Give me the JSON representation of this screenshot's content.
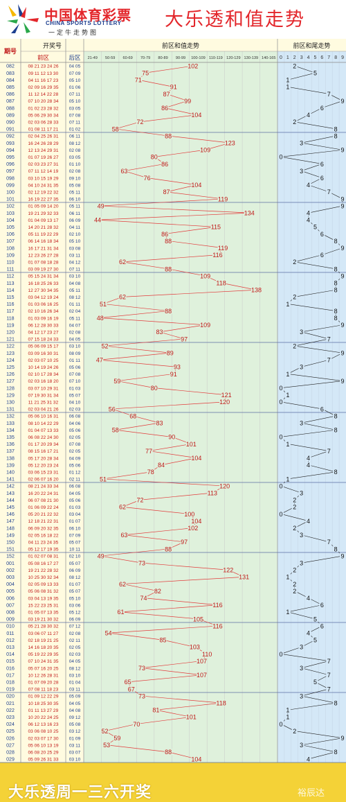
{
  "brand": {
    "name_cn": "中国体育彩票",
    "name_en": "CHINA SPORTS LOTTERY",
    "slogan": "一定牛走势图",
    "title": "大乐透和值走势"
  },
  "headers": {
    "period": "期号",
    "draw": "开奖号",
    "front": "前区",
    "back": "后区",
    "sum_trend": "前区和值走势",
    "tail_trend": "前区和尾走势"
  },
  "footer": {
    "text": "大乐透周一三六开奖",
    "watermark": "裕辰达"
  },
  "chart_data": {
    "type": "line",
    "sum_bins": [
      "21-49",
      "50-59",
      "60-69",
      "70-79",
      "80-89",
      "90-99",
      "100-109",
      "110-119",
      "120-129",
      "130-139",
      "140-165"
    ],
    "tail_digits": [
      "0",
      "1",
      "2",
      "3",
      "4",
      "5",
      "6",
      "7",
      "8",
      "9"
    ],
    "rows": [
      {
        "period": "082",
        "front": "08 21 23 24 26",
        "back": "04 05",
        "sum": 102,
        "tail": 2
      },
      {
        "period": "083",
        "front": "09 11 12 13 30",
        "back": "07 09",
        "sum": 75,
        "tail": 5
      },
      {
        "period": "084",
        "front": "04 11 16 17 23",
        "back": "05 10",
        "sum": 71,
        "tail": 1
      },
      {
        "period": "085",
        "front": "02 09 16 29 35",
        "back": "01 06",
        "sum": 91,
        "tail": 1
      },
      {
        "period": "086",
        "front": "11 12 14 22 28",
        "back": "07 11",
        "sum": 87,
        "tail": 7
      },
      {
        "period": "087",
        "front": "07 10 20 28 34",
        "back": "05 10",
        "sum": 99,
        "tail": 9
      },
      {
        "period": "088",
        "front": "01 02 23 28 32",
        "back": "03 05",
        "sum": 86,
        "tail": 6
      },
      {
        "period": "089",
        "front": "05 06 29 30 34",
        "back": "07 08",
        "sum": 104,
        "tail": 4
      },
      {
        "period": "090",
        "front": "02 03 06 28 33",
        "back": "07 11",
        "sum": 72,
        "tail": 2
      },
      {
        "period": "091",
        "front": "01 08 11 17 21",
        "back": "01 02",
        "sum": 58,
        "tail": 8
      },
      {
        "period": "092",
        "front": "02 04 25 26 31",
        "back": "06 11",
        "sum": 88,
        "tail": 8
      },
      {
        "period": "093",
        "front": "16 24 26 28 29",
        "back": "08 12",
        "sum": 123,
        "tail": 3
      },
      {
        "period": "094",
        "front": "12 13 24 29 31",
        "back": "02 08",
        "sum": 109,
        "tail": 9
      },
      {
        "period": "095",
        "front": "01 07 19 26 27",
        "back": "03 05",
        "sum": 80,
        "tail": 0
      },
      {
        "period": "096",
        "front": "02 03 23 27 31",
        "back": "01 10",
        "sum": 86,
        "tail": 6
      },
      {
        "period": "097",
        "front": "07 11 12 14 19",
        "back": "02 08",
        "sum": 63,
        "tail": 3
      },
      {
        "period": "098",
        "front": "03 10 15 19 29",
        "back": "09 10",
        "sum": 76,
        "tail": 6
      },
      {
        "period": "099",
        "front": "04 10 24 31 35",
        "back": "05 08",
        "sum": 104,
        "tail": 4
      },
      {
        "period": "100",
        "front": "02 12 19 22 32",
        "back": "05 11",
        "sum": 87,
        "tail": 7
      },
      {
        "period": "101",
        "front": "16 19 22 27 35",
        "back": "06 10",
        "sum": 119,
        "tail": 9
      },
      {
        "period": "102",
        "front": "01 05 09 14 20",
        "back": "05 11",
        "sum": 49,
        "tail": 9
      },
      {
        "period": "103",
        "front": "19 21 29 32 33",
        "back": "06 11",
        "sum": 134,
        "tail": 4
      },
      {
        "period": "104",
        "front": "01 04 09 13 17",
        "back": "06 09",
        "sum": 44,
        "tail": 4
      },
      {
        "period": "105",
        "front": "14 20 21 28 32",
        "back": "04 11",
        "sum": 115,
        "tail": 5
      },
      {
        "period": "106",
        "front": "05 11 19 22 29",
        "back": "02 10",
        "sum": 86,
        "tail": 6
      },
      {
        "period": "107",
        "front": "06 14 16 18 34",
        "back": "05 10",
        "sum": 88,
        "tail": 8
      },
      {
        "period": "108",
        "front": "16 17 21 31 34",
        "back": "03 08",
        "sum": 119,
        "tail": 9
      },
      {
        "period": "109",
        "front": "12 23 26 27 28",
        "back": "03 11",
        "sum": 116,
        "tail": 6
      },
      {
        "period": "110",
        "front": "01 07 08 18 28",
        "back": "04 12",
        "sum": 62,
        "tail": 2
      },
      {
        "period": "111",
        "front": "03 09 19 27 30",
        "back": "07 11",
        "sum": 88,
        "tail": 8
      },
      {
        "period": "112",
        "front": "05 15 24 31 34",
        "back": "03 10",
        "sum": 109,
        "tail": 9
      },
      {
        "period": "113",
        "front": "16 18 25 26 33",
        "back": "04 08",
        "sum": 118,
        "tail": 8
      },
      {
        "period": "114",
        "front": "12 27 30 34 35",
        "back": "05 11",
        "sum": 138,
        "tail": 8
      },
      {
        "period": "115",
        "front": "03 04 12 19 24",
        "back": "08 12",
        "sum": 62,
        "tail": 2
      },
      {
        "period": "116",
        "front": "01 03 06 16 25",
        "back": "01 11",
        "sum": 51,
        "tail": 1
      },
      {
        "period": "117",
        "front": "02 10 16 26 34",
        "back": "02 04",
        "sum": 88,
        "tail": 8
      },
      {
        "period": "118",
        "front": "01 03 09 16 19",
        "back": "05 11",
        "sum": 48,
        "tail": 8
      },
      {
        "period": "119",
        "front": "06 12 28 30 33",
        "back": "04 07",
        "sum": 109,
        "tail": 9
      },
      {
        "period": "120",
        "front": "04 12 17 23 27",
        "back": "02 08",
        "sum": 83,
        "tail": 3
      },
      {
        "period": "121",
        "front": "07 15 18 24 33",
        "back": "04 05",
        "sum": 97,
        "tail": 7
      },
      {
        "period": "122",
        "front": "05 06 09 15 17",
        "back": "03 10",
        "sum": 52,
        "tail": 2
      },
      {
        "period": "123",
        "front": "03 09 16 30 31",
        "back": "08 09",
        "sum": 89,
        "tail": 9
      },
      {
        "period": "124",
        "front": "02 03 07 10 25",
        "back": "01 11",
        "sum": 47,
        "tail": 7
      },
      {
        "period": "125",
        "front": "10 14 19 24 26",
        "back": "05 06",
        "sum": 93,
        "tail": 3
      },
      {
        "period": "126",
        "front": "02 10 17 28 34",
        "back": "07 08",
        "sum": 91,
        "tail": 1
      },
      {
        "period": "127",
        "front": "02 03 16 18 20",
        "back": "07 10",
        "sum": 59,
        "tail": 9
      },
      {
        "period": "128",
        "front": "03 07 10 29 31",
        "back": "01 03",
        "sum": 80,
        "tail": 0
      },
      {
        "period": "129",
        "front": "07 19 30 31 34",
        "back": "05 07",
        "sum": 121,
        "tail": 1
      },
      {
        "period": "130",
        "front": "11 21 25 31 32",
        "back": "04 10",
        "sum": 120,
        "tail": 0
      },
      {
        "period": "131",
        "front": "02 03 04 21 26",
        "back": "02 03",
        "sum": 56,
        "tail": 6
      },
      {
        "period": "132",
        "front": "05 06 10 16 31",
        "back": "06 08",
        "sum": 68,
        "tail": 8
      },
      {
        "period": "133",
        "front": "08 10 14 22 29",
        "back": "04 06",
        "sum": 83,
        "tail": 3
      },
      {
        "period": "134",
        "front": "01 04 07 13 33",
        "back": "05 06",
        "sum": 58,
        "tail": 8
      },
      {
        "period": "135",
        "front": "06 08 22 24 30",
        "back": "02 05",
        "sum": 90,
        "tail": 0
      },
      {
        "period": "136",
        "front": "01 17 20 29 34",
        "back": "07 08",
        "sum": 101,
        "tail": 1
      },
      {
        "period": "137",
        "front": "08 15 16 17 21",
        "back": "02 05",
        "sum": 77,
        "tail": 7
      },
      {
        "period": "138",
        "front": "05 17 20 28 34",
        "back": "04 09",
        "sum": 104,
        "tail": 4
      },
      {
        "period": "139",
        "front": "05 12 20 23 24",
        "back": "05 06",
        "sum": 84,
        "tail": 4
      },
      {
        "period": "140",
        "front": "03 06 15 23 31",
        "back": "01 12",
        "sum": 78,
        "tail": 8
      },
      {
        "period": "141",
        "front": "02 06 07 16 20",
        "back": "02 11",
        "sum": 51,
        "tail": 1
      },
      {
        "period": "142",
        "front": "08 21 24 33 34",
        "back": "06 08",
        "sum": 120,
        "tail": 0
      },
      {
        "period": "143",
        "front": "16 20 22 24 31",
        "back": "04 05",
        "sum": 113,
        "tail": 3
      },
      {
        "period": "144",
        "front": "06 07 08 21 30",
        "back": "05 06",
        "sum": 72,
        "tail": 2
      },
      {
        "period": "145",
        "front": "01 06 09 22 24",
        "back": "01 03",
        "sum": 62,
        "tail": 2
      },
      {
        "period": "146",
        "front": "05 20 21 22 32",
        "back": "03 04",
        "sum": 100,
        "tail": 0
      },
      {
        "period": "147",
        "front": "12 18 21 22 31",
        "back": "01 07",
        "sum": 104,
        "tail": 4
      },
      {
        "period": "148",
        "front": "06 09 20 32 35",
        "back": "06 10",
        "sum": 102,
        "tail": 2
      },
      {
        "period": "149",
        "front": "02 05 16 18 22",
        "back": "07 09",
        "sum": 63,
        "tail": 3
      },
      {
        "period": "150",
        "front": "04 11 23 24 35",
        "back": "05 07",
        "sum": 97,
        "tail": 7
      },
      {
        "period": "151",
        "front": "05 12 17 19 35",
        "back": "10 11",
        "sum": 88,
        "tail": 8
      },
      {
        "period": "152",
        "front": "01 02 07 08 31",
        "back": "02 10",
        "sum": 49,
        "tail": 9
      },
      {
        "period": "001",
        "front": "05 08 16 17 27",
        "back": "05 07",
        "sum": 73,
        "tail": 3
      },
      {
        "period": "002",
        "front": "19 21 22 28 32",
        "back": "06 09",
        "sum": 122,
        "tail": 2
      },
      {
        "period": "003",
        "front": "10 25 30 32 34",
        "back": "08 12",
        "sum": 131,
        "tail": 1
      },
      {
        "period": "004",
        "front": "02 05 09 13 33",
        "back": "01 07",
        "sum": 62,
        "tail": 2
      },
      {
        "period": "005",
        "front": "05 06 08 31 32",
        "back": "05 07",
        "sum": 82,
        "tail": 2
      },
      {
        "period": "006",
        "front": "03 04 13 19 35",
        "back": "05 10",
        "sum": 74,
        "tail": 4
      },
      {
        "period": "007",
        "front": "15 22 23 25 31",
        "back": "03 06",
        "sum": 116,
        "tail": 6
      },
      {
        "period": "008",
        "front": "01 05 07 13 35",
        "back": "05 12",
        "sum": 61,
        "tail": 1
      },
      {
        "period": "009",
        "front": "03 19 21 30 32",
        "back": "06 09",
        "sum": 105,
        "tail": 5
      },
      {
        "period": "010",
        "front": "05 21 28 30 32",
        "back": "07 12",
        "sum": 116,
        "tail": 6
      },
      {
        "period": "011",
        "front": "03 06 07 11 27",
        "back": "02 08",
        "sum": 54,
        "tail": 4
      },
      {
        "period": "012",
        "front": "02 18 19 21 25",
        "back": "02 11",
        "sum": 85,
        "tail": 5
      },
      {
        "period": "013",
        "front": "14 16 18 20 35",
        "back": "02 05",
        "sum": 103,
        "tail": 3
      },
      {
        "period": "014",
        "front": "05 19 22 29 35",
        "back": "02 03",
        "sum": 110,
        "tail": 0
      },
      {
        "period": "015",
        "front": "07 10 24 31 35",
        "back": "04 05",
        "sum": 107,
        "tail": 7
      },
      {
        "period": "016",
        "front": "05 07 16 20 25",
        "back": "08 12",
        "sum": 73,
        "tail": 3
      },
      {
        "period": "017",
        "front": "10 12 26 28 31",
        "back": "03 10",
        "sum": 107,
        "tail": 7
      },
      {
        "period": "018",
        "front": "01 07 09 20 28",
        "back": "01 04",
        "sum": 65,
        "tail": 5
      },
      {
        "period": "019",
        "front": "07 08 11 18 23",
        "back": "03 11",
        "sum": 67,
        "tail": 7
      },
      {
        "period": "020",
        "front": "01 09 12 22 29",
        "back": "05 09",
        "sum": 73,
        "tail": 3
      },
      {
        "period": "021",
        "front": "10 18 25 30 35",
        "back": "04 05",
        "sum": 118,
        "tail": 8
      },
      {
        "period": "022",
        "front": "01 11 13 27 29",
        "back": "04 08",
        "sum": 81,
        "tail": 1
      },
      {
        "period": "023",
        "front": "10 20 22 24 25",
        "back": "09 12",
        "sum": 101,
        "tail": 1
      },
      {
        "period": "024",
        "front": "06 12 13 16 23",
        "back": "05 08",
        "sum": 70,
        "tail": 0
      },
      {
        "period": "025",
        "front": "03 06 08 10 25",
        "back": "03 12",
        "sum": 52,
        "tail": 2
      },
      {
        "period": "026",
        "front": "02 03 07 17 30",
        "back": "01 09",
        "sum": 59,
        "tail": 9
      },
      {
        "period": "027",
        "front": "05 06 10 13 19",
        "back": "03 11",
        "sum": 53,
        "tail": 3
      },
      {
        "period": "028",
        "front": "06 08 20 25 29",
        "back": "03 07",
        "sum": 88,
        "tail": 8
      },
      {
        "period": "029",
        "front": "05 09 26 31 33",
        "back": "03 10",
        "sum": 104,
        "tail": 4
      }
    ]
  }
}
